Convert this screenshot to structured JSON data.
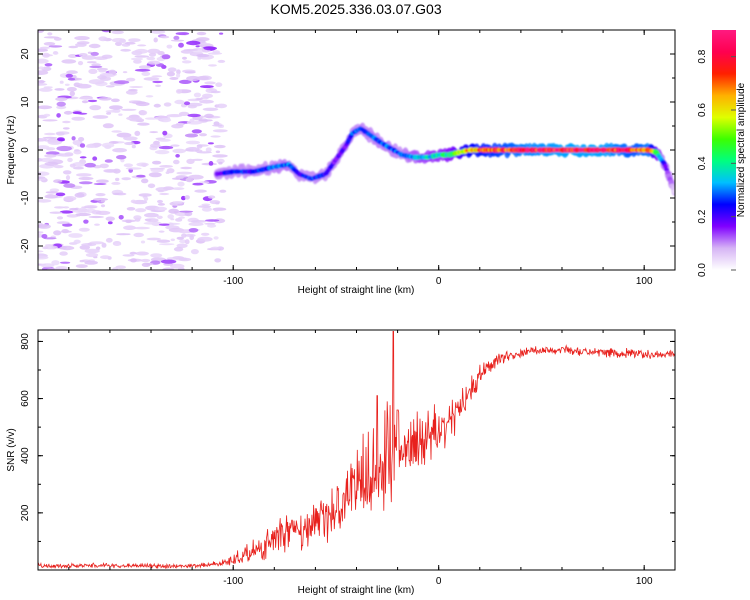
{
  "title": "KOM5.2025.336.03.07.G03",
  "colors": {
    "snr_line": "#e8211d",
    "frame": "#000000",
    "text": "#000000"
  },
  "chart_data": [
    {
      "type": "heatmap",
      "name": "spectrogram",
      "xlabel": "Height of straight line (km)",
      "ylabel": "Frequency (Hz)",
      "xlim": [
        -195,
        115
      ],
      "ylim": [
        -25,
        25
      ],
      "xticks": [
        -100,
        0,
        100
      ],
      "xtick_labels": [
        "-100",
        "0",
        "100"
      ],
      "yticks": [
        20,
        10,
        0,
        -10,
        -20
      ],
      "ytick_labels": [
        "20",
        "10",
        "0",
        "-10",
        "-20"
      ],
      "ridge": {
        "description": "frequency ridge (Hz) vs height (km)",
        "x": [
          -108,
          -100,
          -90,
          -80,
          -73,
          -68,
          -62,
          -55,
          -50,
          -45,
          -42,
          -38,
          -33,
          -28,
          -22,
          -18,
          -12,
          -5,
          0,
          5,
          15,
          25,
          40,
          60,
          80,
          95,
          102,
          106,
          110,
          115
        ],
        "y": [
          -5,
          -4.5,
          -4.5,
          -3.5,
          -3,
          -5,
          -6,
          -5,
          -2,
          1,
          3.5,
          4.5,
          3,
          1.5,
          0,
          -1,
          -1.5,
          -1.5,
          -1,
          -1,
          0,
          0,
          0,
          0,
          0,
          0,
          0,
          -0.5,
          -3,
          -9
        ],
        "amplitude": [
          0.18,
          0.28,
          0.25,
          0.3,
          0.32,
          0.22,
          0.28,
          0.25,
          0.18,
          0.2,
          0.28,
          0.3,
          0.3,
          0.3,
          0.3,
          0.28,
          0.35,
          0.4,
          0.4,
          0.45,
          0.7,
          0.75,
          0.85,
          0.9,
          0.9,
          0.8,
          0.85,
          0.5,
          0.2,
          0.05
        ]
      },
      "noise_region_x": [
        -195,
        -105
      ],
      "colorbar": {
        "label": "Normalized spectral amplitude",
        "range": [
          0,
          0.9
        ],
        "ticks": [
          0.0,
          0.2,
          0.4,
          0.6,
          0.8
        ],
        "tick_labels": [
          "0.0",
          "0.2",
          "0.4",
          "0.6",
          "0.8"
        ],
        "stops": [
          "#ffffff",
          "#d6b4f5",
          "#8000ff",
          "#0000ff",
          "#00bfff",
          "#00ff7f",
          "#3cff00",
          "#dfff00",
          "#ffb000",
          "#ff2000",
          "#ff0050",
          "#ff1a80"
        ]
      }
    },
    {
      "type": "line",
      "name": "snr",
      "xlabel": "Height of straight line (km)",
      "ylabel": "SNR (v/v)",
      "xlim": [
        -195,
        115
      ],
      "ylim": [
        0,
        840
      ],
      "xticks": [
        -100,
        0,
        100
      ],
      "xtick_labels": [
        "-100",
        "0",
        "100"
      ],
      "yticks": [
        200,
        400,
        600,
        800
      ],
      "ytick_labels": [
        "200",
        "400",
        "600",
        "800"
      ],
      "series": [
        {
          "name": "SNR",
          "x": [
            -195,
            -180,
            -160,
            -140,
            -120,
            -110,
            -105,
            -100,
            -95,
            -90,
            -85,
            -80,
            -75,
            -70,
            -65,
            -60,
            -55,
            -50,
            -45,
            -40,
            -35,
            -30,
            -25,
            -22,
            -20,
            -15,
            -10,
            -5,
            0,
            5,
            10,
            15,
            20,
            25,
            30,
            35,
            40,
            45,
            50,
            60,
            70,
            80,
            90,
            95,
            100,
            110,
            115
          ],
          "values": [
            15,
            15,
            15,
            15,
            15,
            20,
            25,
            35,
            55,
            70,
            85,
            110,
            130,
            135,
            150,
            170,
            190,
            220,
            270,
            300,
            340,
            360,
            380,
            400,
            420,
            430,
            450,
            470,
            490,
            520,
            560,
            620,
            680,
            720,
            740,
            750,
            760,
            770,
            770,
            770,
            765,
            760,
            760,
            760,
            755,
            755,
            755
          ],
          "spread": [
            10,
            10,
            10,
            10,
            10,
            12,
            15,
            25,
            35,
            45,
            55,
            70,
            80,
            80,
            85,
            90,
            100,
            110,
            140,
            170,
            200,
            230,
            260,
            150,
            150,
            140,
            130,
            120,
            110,
            90,
            70,
            55,
            45,
            35,
            30,
            25,
            20,
            18,
            18,
            18,
            18,
            18,
            25,
            20,
            18,
            15,
            15
          ]
        }
      ],
      "annotations": [
        {
          "type": "spike",
          "x": -22,
          "value": 835
        },
        {
          "type": "spike",
          "x": -30,
          "value": 610
        },
        {
          "type": "spike",
          "x": -20,
          "value": 560
        }
      ]
    }
  ]
}
